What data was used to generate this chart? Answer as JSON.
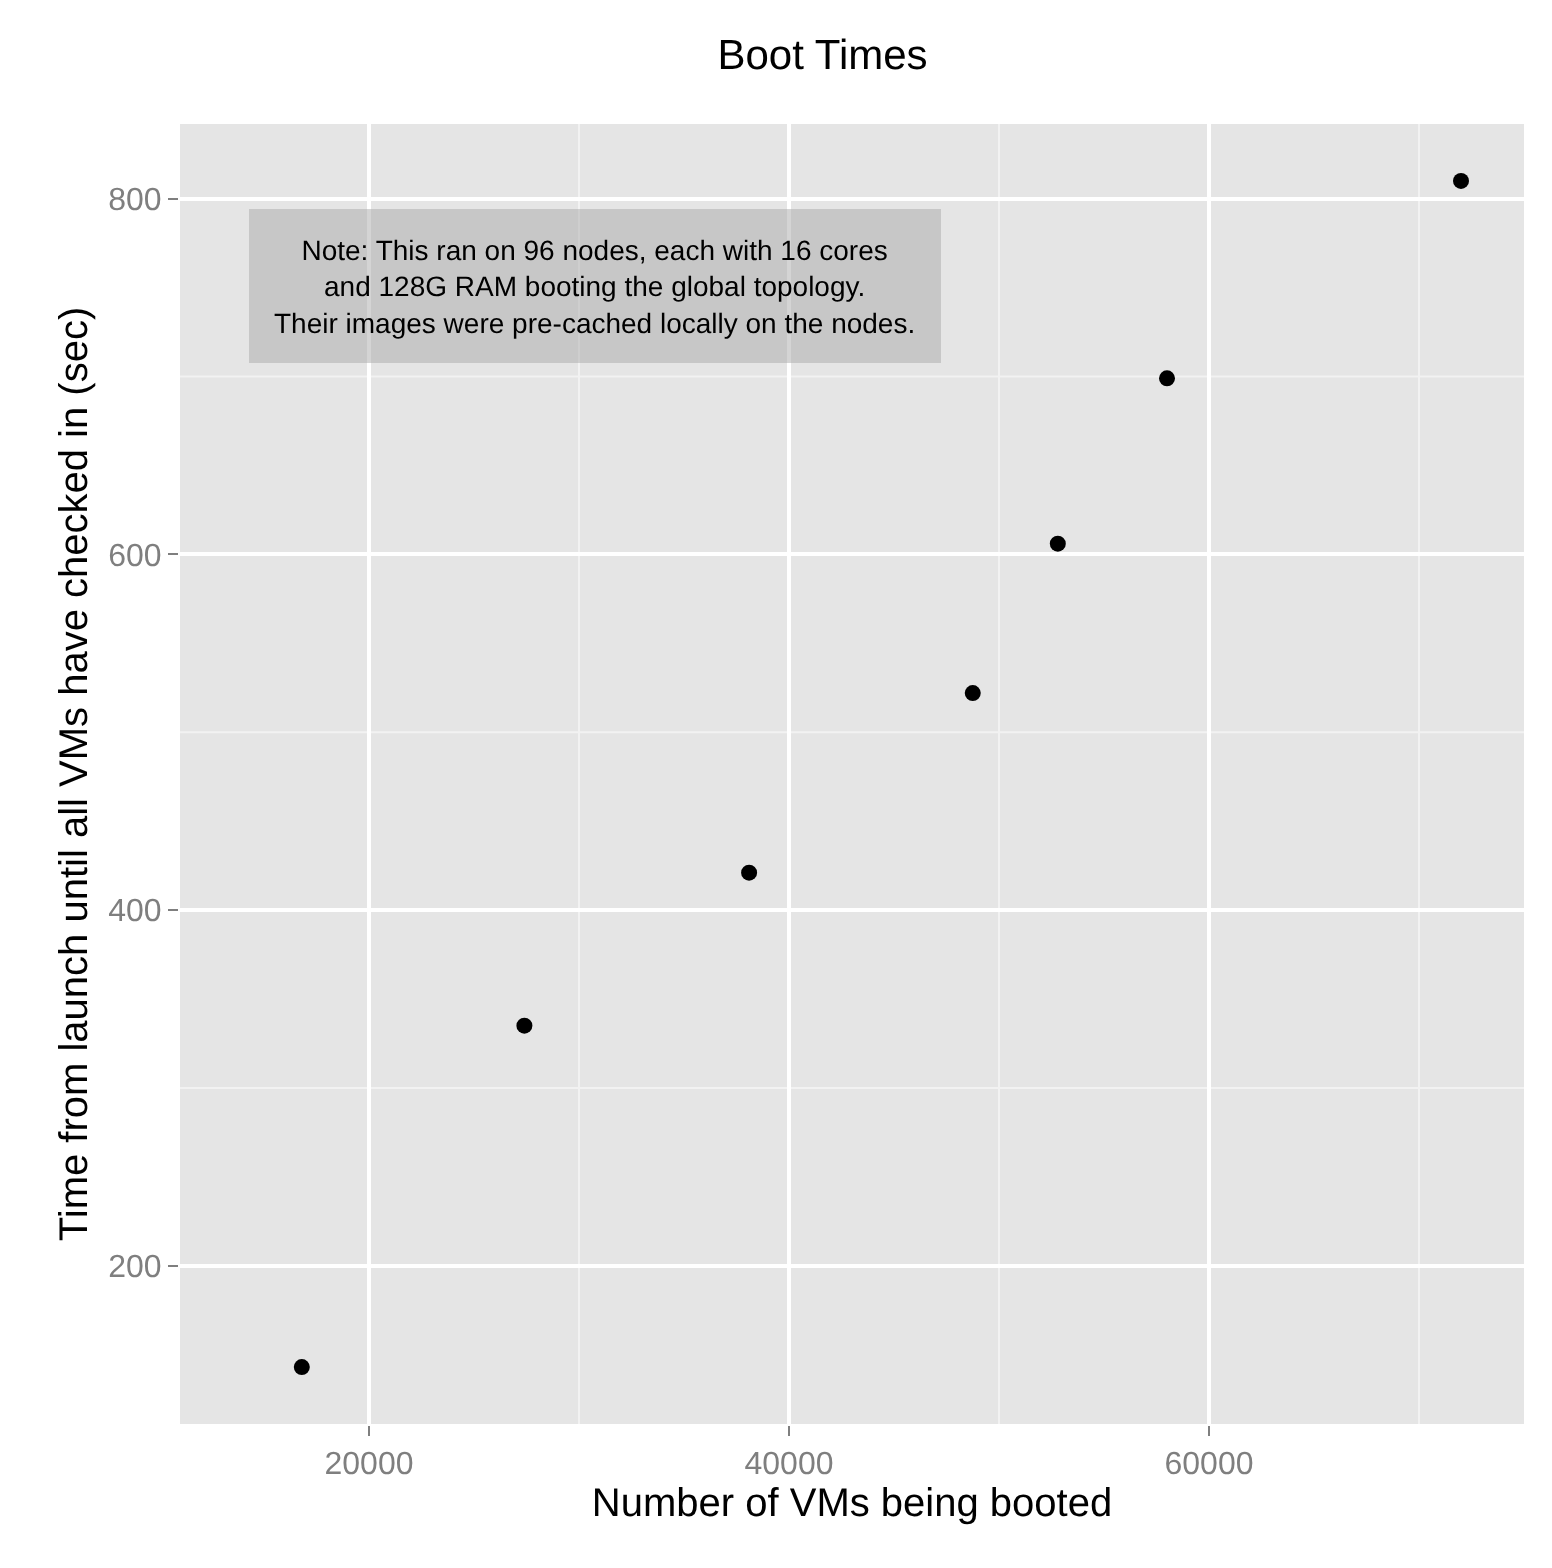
{
  "chart_data": {
    "type": "scatter",
    "title": "Boot Times",
    "xlabel": "Number of VMs being booted",
    "ylabel": "Time from launch until all VMs have checked in (sec)",
    "x": [
      16800,
      27400,
      38100,
      48750,
      52800,
      58000,
      72000
    ],
    "series": [
      {
        "color": "#000000",
        "values": [
          143,
          335,
          421,
          522,
          606,
          699,
          810
        ]
      }
    ],
    "xlim": [
      11000,
      75000
    ],
    "xticks": [
      20000,
      40000,
      60000
    ],
    "ylim": [
      111,
      842
    ],
    "yticks": [
      200,
      400,
      600,
      800
    ],
    "grid": true,
    "marker": "circle",
    "legend": false,
    "annotations": [
      "Note: This ran on 96 nodes, each with 16 cores\nand 128G RAM booting the global topology.\nTheir images were pre-cached locally on the nodes."
    ]
  }
}
